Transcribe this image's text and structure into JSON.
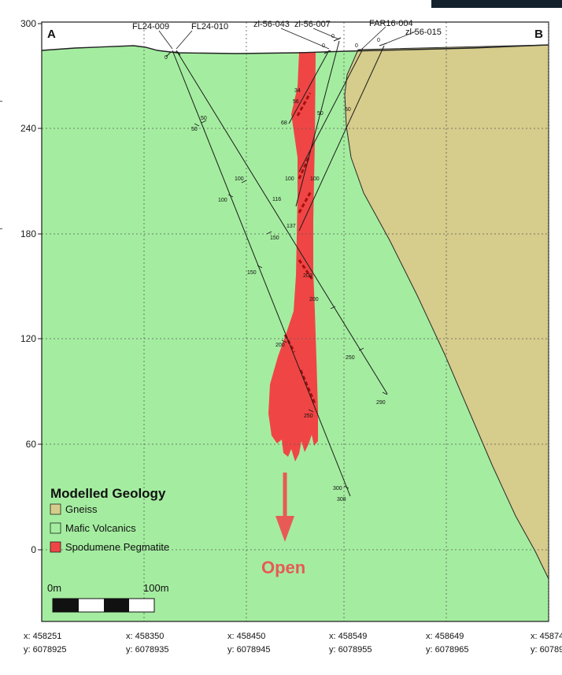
{
  "section": {
    "start_label": "A",
    "end_label": "B",
    "elevation_ticks": [
      "300",
      "240",
      "180",
      "120",
      "60",
      "0"
    ],
    "footer_coords": [
      {
        "x": "x: 458251",
        "y": "y: 6078925"
      },
      {
        "x": "x: 458350",
        "y": "y: 6078935"
      },
      {
        "x": "x: 458450",
        "y": "y: 6078945"
      },
      {
        "x": "x: 458549",
        "y": "y: 6078955"
      },
      {
        "x": "x: 458649",
        "y": "y: 6078965"
      },
      {
        "x": "x: 458748",
        "y": "y: 6078975"
      }
    ]
  },
  "drillholes": {
    "names": [
      "FL24-009",
      "FL24-010",
      "zl-56-043",
      "zl-56-007",
      "FAR16-004",
      "zl-56-015"
    ],
    "depth_labels": [
      "0",
      "0",
      "0",
      "0",
      "0",
      "50",
      "50",
      "100",
      "100",
      "150",
      "200",
      "200",
      "250",
      "250",
      "300",
      "308",
      "290",
      "34",
      "56",
      "68",
      "50",
      "100",
      "116",
      "137",
      "150",
      "50",
      "100",
      "200"
    ]
  },
  "legend": {
    "title": "Modelled Geology",
    "items": [
      {
        "label": "Gneiss",
        "color": "#d6cc8b"
      },
      {
        "label": "Mafic Volcanics",
        "color": "#a4eda0"
      },
      {
        "label": "Spodumene Pegmatite",
        "color": "#f04545"
      }
    ]
  },
  "scale_bar": {
    "start_label": "0m",
    "end_label": "100m"
  },
  "annotation": {
    "open_label": "Open",
    "color": "#e85a55"
  },
  "colors": {
    "mafic": "#a4eda0",
    "gneiss": "#d6cc8b",
    "pegmatite": "#f04545",
    "border": "#1b1b1b",
    "intercept": "#a80f0f"
  }
}
